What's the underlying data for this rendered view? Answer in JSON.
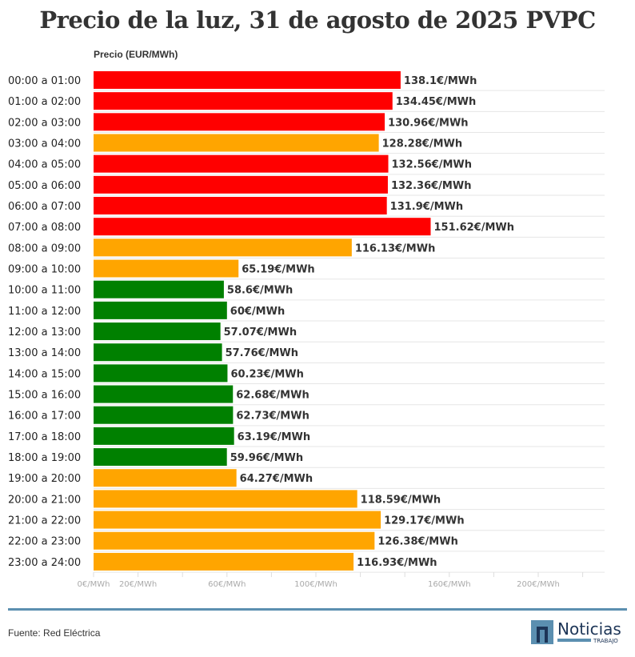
{
  "chart_data": {
    "type": "bar",
    "orientation": "horizontal",
    "title": "Precio de la luz, 31 de agosto de 2025 PVPC",
    "ylabel": "Precio (EUR/MWh)",
    "categories": [
      "00:00 a 01:00",
      "01:00 a 02:00",
      "02:00 a 03:00",
      "03:00 a 04:00",
      "04:00 a 05:00",
      "05:00 a 06:00",
      "06:00 a 07:00",
      "07:00 a 08:00",
      "08:00 a 09:00",
      "09:00 a 10:00",
      "10:00 a 11:00",
      "11:00 a 12:00",
      "12:00 a 13:00",
      "13:00 a 14:00",
      "14:00 a 15:00",
      "15:00 a 16:00",
      "16:00 a 17:00",
      "17:00 a 18:00",
      "18:00 a 19:00",
      "19:00 a 20:00",
      "20:00 a 21:00",
      "21:00 a 22:00",
      "22:00 a 23:00",
      "23:00 a 24:00"
    ],
    "values": [
      138.1,
      134.45,
      130.96,
      128.28,
      132.56,
      132.36,
      131.9,
      151.62,
      116.13,
      65.19,
      58.6,
      60,
      57.07,
      57.76,
      60.23,
      62.68,
      62.73,
      63.19,
      59.96,
      64.27,
      118.59,
      129.17,
      126.38,
      116.93
    ],
    "data_labels": [
      "138.1€/MWh",
      "134.45€/MWh",
      "130.96€/MWh",
      "128.28€/MWh",
      "132.56€/MWh",
      "132.36€/MWh",
      "131.9€/MWh",
      "151.62€/MWh",
      "116.13€/MWh",
      "65.19€/MWh",
      "58.6€/MWh",
      "60€/MWh",
      "57.07€/MWh",
      "57.76€/MWh",
      "60.23€/MWh",
      "62.68€/MWh",
      "62.73€/MWh",
      "63.19€/MWh",
      "59.96€/MWh",
      "64.27€/MWh",
      "118.59€/MWh",
      "129.17€/MWh",
      "126.38€/MWh",
      "116.93€/MWh"
    ],
    "bar_colors": [
      "red",
      "red",
      "red",
      "orange",
      "red",
      "red",
      "red",
      "red",
      "orange",
      "orange",
      "green",
      "green",
      "green",
      "green",
      "green",
      "green",
      "green",
      "green",
      "green",
      "orange",
      "orange",
      "orange",
      "orange",
      "orange"
    ],
    "color_map": {
      "red": "#ff0000",
      "orange": "#ffa500",
      "green": "#008000"
    },
    "xlim": [
      0,
      230
    ],
    "x_ticks": [
      0,
      20,
      40,
      60,
      80,
      100,
      120,
      140,
      160,
      180,
      200,
      220
    ],
    "x_tick_labels": [
      {
        "value": 0,
        "label": "0€/MWh"
      },
      {
        "value": 20,
        "label": "20€/MWh"
      },
      {
        "value": 60,
        "label": "60€/MWh"
      },
      {
        "value": 100,
        "label": "100€/MWh"
      },
      {
        "value": 160,
        "label": "160€/MWh"
      },
      {
        "value": 200,
        "label": "200€/MWh"
      }
    ],
    "grid": true,
    "legend": "none"
  },
  "footer": {
    "source": "Fuente: Red Eléctrica",
    "logo_text": "Noticias",
    "logo_sub": "TRABAJO"
  }
}
